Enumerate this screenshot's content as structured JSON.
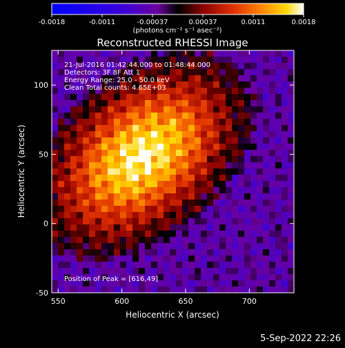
{
  "colorbar": {
    "ticks": [
      "-0.0018",
      "-0.0011",
      "-0.00037",
      "0.00037",
      "0.0011",
      "0.0018"
    ],
    "unit_label": "(photons cm⁻² s⁻¹ asec⁻²)",
    "range": [
      -0.0018,
      0.0018
    ]
  },
  "image": {
    "title": "Reconstructed RHESSI Image",
    "info": [
      "21-Jul-2016 01:42:44.000 to 01:48:44.000",
      "Detectors: 3F 8F Att 1",
      "Energy Range: 25.0 - 50.0 keV",
      "Clean     Total counts: 4.65E+03"
    ],
    "peak_text": "Position of Peak = [616,49]",
    "xlabel": "Heliocentric X (arcsec)",
    "ylabel": "Heliocentric Y (arcsec)",
    "timestamp": "5-Sep-2022 22:26"
  },
  "chart_data": {
    "type": "heatmap",
    "title": "Reconstructed RHESSI Image",
    "xlabel": "Heliocentric X (arcsec)",
    "ylabel": "Heliocentric Y (arcsec)",
    "xlim": [
      545,
      735
    ],
    "ylim": [
      -50,
      125
    ],
    "xticks": [
      550,
      600,
      650,
      700
    ],
    "yticks": [
      -50,
      0,
      50,
      100
    ],
    "colormap": "heat",
    "value_range": [
      -0.0018,
      0.0018
    ],
    "peak": {
      "x": 616,
      "y": 49
    },
    "grid": false
  }
}
